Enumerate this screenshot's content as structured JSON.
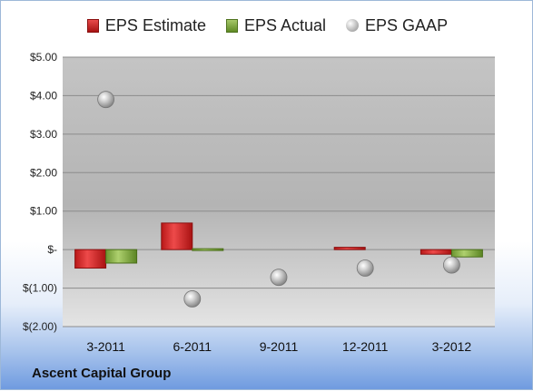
{
  "caption": "Ascent Capital Group",
  "legend": [
    {
      "label": "EPS Estimate",
      "color": "#cc1f1f",
      "shape": "rect"
    },
    {
      "label": "EPS Actual",
      "color": "#7aa23a",
      "shape": "rect"
    },
    {
      "label": "EPS GAAP",
      "color": "#a0a0a0",
      "shape": "circle"
    }
  ],
  "chart_data": {
    "type": "bar",
    "title": "",
    "xlabel": "",
    "ylabel": "",
    "categories": [
      "3-2011",
      "6-2011",
      "9-2011",
      "12-2011",
      "3-2012"
    ],
    "ylim": [
      -2,
      5
    ],
    "yticks": [
      5,
      4,
      3,
      2,
      1,
      0,
      -1,
      -2
    ],
    "ytick_labels": [
      "$5.00",
      "$4.00",
      "$3.00",
      "$2.00",
      "$1.00",
      "$-",
      "$(1.00)",
      "$(2.00)"
    ],
    "grid": true,
    "legend_position": "top",
    "series": [
      {
        "name": "EPS Estimate",
        "kind": "bar",
        "color": "#cc1f1f",
        "values": [
          -0.48,
          0.69,
          null,
          0.06,
          -0.12
        ]
      },
      {
        "name": "EPS Actual",
        "kind": "bar",
        "color": "#7aa23a",
        "values": [
          -0.35,
          -0.03,
          null,
          null,
          -0.19
        ]
      },
      {
        "name": "EPS GAAP",
        "kind": "scatter",
        "color": "#a0a0a0",
        "values": [
          3.9,
          -1.28,
          -0.72,
          -0.48,
          -0.4
        ]
      }
    ]
  }
}
